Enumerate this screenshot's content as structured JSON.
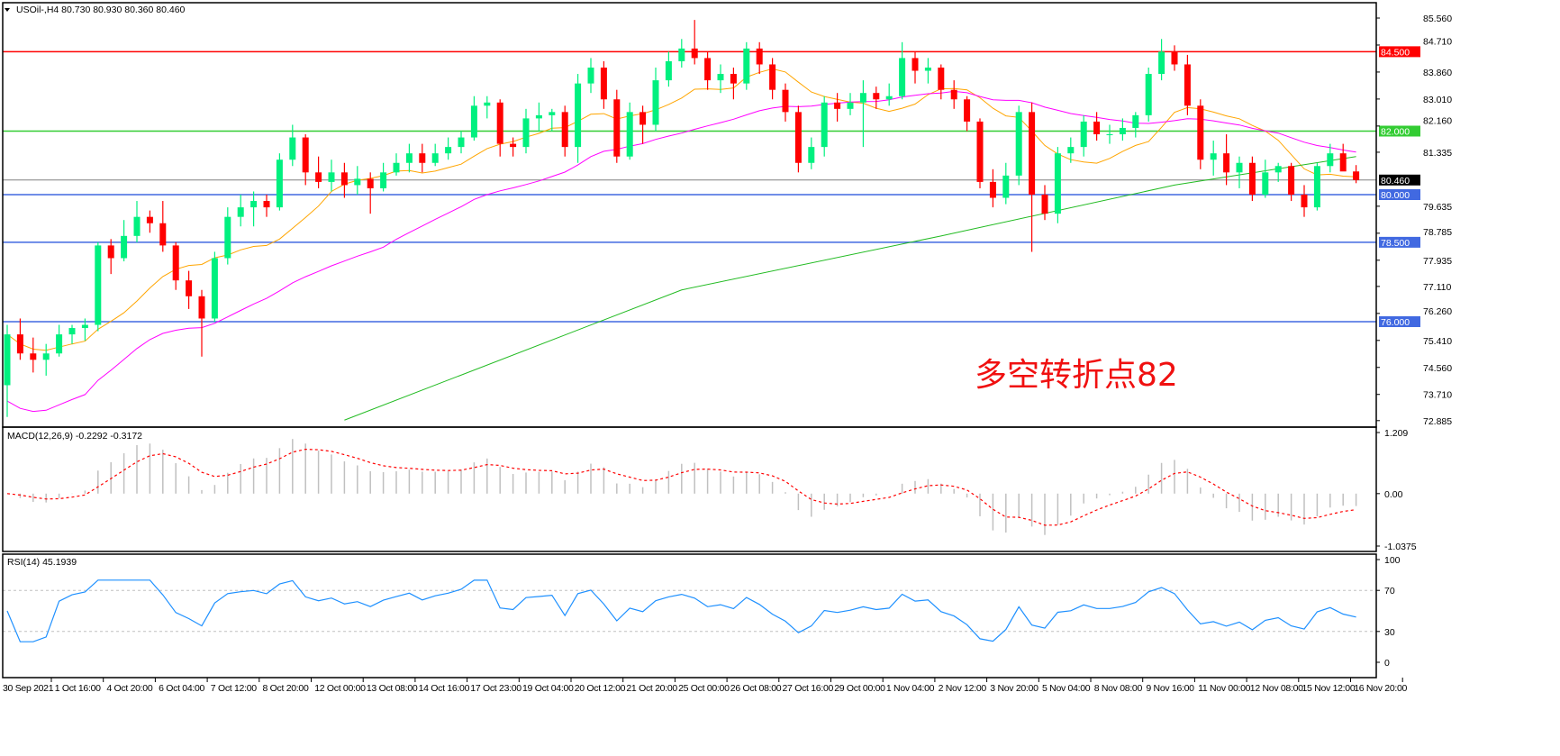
{
  "chart_data": {
    "type": "candlestick",
    "symbol_header": "USOil-,H4  80.730 80.930 80.360 80.460",
    "annotation": "多空转折点82",
    "colors": {
      "bull": "#00f07f",
      "bear": "#ff0000",
      "ma_fast": "#ffa500",
      "ma_mid": "#ff00ff",
      "ma_long": "#22bb22",
      "macd_hist": "#c0c0c0",
      "macd_signal": "#ff0000",
      "rsi": "#1e90ff"
    },
    "price_axis": {
      "min": 72.885,
      "max": 85.56,
      "ticks": [
        "85.560",
        "84.710",
        "83.860",
        "83.010",
        "82.160",
        "81.335",
        "79.635",
        "78.785",
        "77.935",
        "77.110",
        "76.260",
        "75.410",
        "74.560",
        "73.710",
        "72.885"
      ]
    },
    "current_price": {
      "value": 80.46,
      "label": "80.460",
      "color": "#808080"
    },
    "levels": [
      {
        "value": 84.5,
        "label": "84.500",
        "color": "#ff0000"
      },
      {
        "value": 82.0,
        "label": "82.000",
        "color": "#33cc33"
      },
      {
        "value": 80.0,
        "label": "80.000",
        "color": "#4169e1"
      },
      {
        "value": 78.5,
        "label": "78.500",
        "color": "#4169e1"
      },
      {
        "value": 76.0,
        "label": "76.000",
        "color": "#4169e1"
      }
    ],
    "time_labels": [
      "30 Sep 2021",
      "1 Oct 16:00",
      "4 Oct 20:00",
      "6 Oct 04:00",
      "7 Oct 12:00",
      "8 Oct 20:00",
      "12 Oct 00:00",
      "13 Oct 08:00",
      "14 Oct 16:00",
      "17 Oct 23:00",
      "19 Oct 04:00",
      "20 Oct 12:00",
      "21 Oct 20:00",
      "25 Oct 00:00",
      "26 Oct 08:00",
      "27 Oct 16:00",
      "29 Oct 00:00",
      "1 Nov 04:00",
      "2 Nov 12:00",
      "3 Nov 20:00",
      "5 Nov 04:00",
      "8 Nov 08:00",
      "9 Nov 16:00",
      "11 Nov 00:00",
      "12 Nov 08:00",
      "15 Nov 12:00",
      "16 Nov 20:00"
    ],
    "candles_ohlc": [
      [
        74.0,
        75.9,
        73.0,
        75.6
      ],
      [
        75.6,
        76.1,
        74.8,
        75.0
      ],
      [
        75.0,
        75.5,
        74.4,
        74.8
      ],
      [
        74.8,
        75.3,
        74.3,
        75.0
      ],
      [
        75.0,
        75.9,
        74.9,
        75.6
      ],
      [
        75.6,
        75.9,
        75.3,
        75.8
      ],
      [
        75.8,
        76.1,
        75.4,
        75.9
      ],
      [
        75.9,
        78.5,
        75.7,
        78.4
      ],
      [
        78.4,
        78.6,
        77.5,
        78.0
      ],
      [
        78.0,
        79.2,
        77.9,
        78.7
      ],
      [
        78.7,
        79.8,
        78.5,
        79.3
      ],
      [
        79.3,
        79.5,
        78.8,
        79.1
      ],
      [
        79.1,
        79.8,
        78.2,
        78.4
      ],
      [
        78.4,
        78.5,
        77.0,
        77.3
      ],
      [
        77.3,
        77.6,
        76.4,
        76.8
      ],
      [
        76.8,
        77.0,
        74.9,
        76.1
      ],
      [
        76.1,
        78.2,
        76.0,
        78.0
      ],
      [
        78.0,
        79.6,
        77.8,
        79.3
      ],
      [
        79.3,
        80.0,
        79.0,
        79.6
      ],
      [
        79.6,
        80.1,
        79.0,
        79.8
      ],
      [
        79.8,
        80.0,
        79.3,
        79.6
      ],
      [
        79.6,
        81.3,
        79.5,
        81.1
      ],
      [
        81.1,
        82.2,
        80.9,
        81.8
      ],
      [
        81.8,
        81.9,
        80.3,
        80.7
      ],
      [
        80.7,
        81.2,
        80.2,
        80.4
      ],
      [
        80.4,
        81.1,
        80.1,
        80.7
      ],
      [
        80.7,
        81.0,
        79.9,
        80.3
      ],
      [
        80.3,
        80.9,
        80.0,
        80.5
      ],
      [
        80.5,
        80.7,
        79.4,
        80.2
      ],
      [
        80.2,
        81.0,
        80.1,
        80.7
      ],
      [
        80.7,
        81.3,
        80.6,
        81.0
      ],
      [
        81.0,
        81.6,
        80.7,
        81.3
      ],
      [
        81.3,
        81.6,
        80.7,
        81.0
      ],
      [
        81.0,
        81.6,
        80.9,
        81.3
      ],
      [
        81.3,
        81.8,
        81.1,
        81.5
      ],
      [
        81.5,
        82.0,
        81.3,
        81.8
      ],
      [
        81.8,
        83.1,
        81.7,
        82.8
      ],
      [
        82.8,
        83.1,
        82.4,
        82.9
      ],
      [
        82.9,
        83.0,
        81.2,
        81.6
      ],
      [
        81.6,
        81.8,
        81.2,
        81.5
      ],
      [
        81.5,
        82.7,
        81.3,
        82.4
      ],
      [
        82.4,
        82.9,
        82.0,
        82.5
      ],
      [
        82.5,
        82.7,
        82.0,
        82.6
      ],
      [
        82.6,
        82.8,
        81.2,
        81.5
      ],
      [
        81.5,
        83.8,
        81.0,
        83.5
      ],
      [
        83.5,
        84.3,
        83.2,
        84.0
      ],
      [
        84.0,
        84.2,
        82.7,
        83.0
      ],
      [
        83.0,
        83.3,
        81.0,
        81.2
      ],
      [
        81.2,
        82.9,
        81.1,
        82.6
      ],
      [
        82.6,
        82.8,
        81.6,
        82.2
      ],
      [
        82.2,
        84.0,
        82.0,
        83.6
      ],
      [
        83.6,
        84.5,
        83.4,
        84.2
      ],
      [
        84.2,
        84.9,
        84.0,
        84.6
      ],
      [
        84.6,
        85.5,
        84.1,
        84.3
      ],
      [
        84.3,
        84.5,
        83.3,
        83.6
      ],
      [
        83.6,
        84.1,
        83.2,
        83.8
      ],
      [
        83.8,
        84.0,
        83.0,
        83.5
      ],
      [
        83.5,
        84.8,
        83.3,
        84.6
      ],
      [
        84.6,
        84.8,
        83.8,
        84.1
      ],
      [
        84.1,
        84.3,
        83.0,
        83.3
      ],
      [
        83.3,
        83.5,
        82.3,
        82.6
      ],
      [
        82.6,
        82.8,
        80.7,
        81.0
      ],
      [
        81.0,
        81.8,
        80.8,
        81.5
      ],
      [
        81.5,
        83.1,
        81.2,
        82.9
      ],
      [
        82.9,
        83.2,
        82.3,
        82.7
      ],
      [
        82.7,
        83.2,
        82.5,
        82.9
      ],
      [
        82.9,
        83.6,
        81.5,
        83.2
      ],
      [
        83.2,
        83.4,
        82.7,
        83.0
      ],
      [
        83.0,
        83.5,
        82.8,
        83.1
      ],
      [
        83.1,
        84.8,
        83.0,
        84.3
      ],
      [
        84.3,
        84.5,
        83.5,
        83.9
      ],
      [
        83.9,
        84.3,
        83.5,
        84.0
      ],
      [
        84.0,
        84.1,
        83.0,
        83.3
      ],
      [
        83.3,
        83.6,
        82.7,
        83.0
      ],
      [
        83.0,
        83.1,
        82.0,
        82.3
      ],
      [
        82.3,
        82.4,
        80.2,
        80.4
      ],
      [
        80.4,
        80.8,
        79.6,
        79.9
      ],
      [
        79.9,
        81.0,
        79.7,
        80.6
      ],
      [
        80.6,
        82.8,
        80.3,
        82.6
      ],
      [
        82.6,
        82.9,
        78.2,
        80.0
      ],
      [
        80.0,
        80.3,
        79.2,
        79.4
      ],
      [
        79.4,
        81.5,
        79.1,
        81.3
      ],
      [
        81.3,
        81.8,
        81.0,
        81.5
      ],
      [
        81.5,
        82.5,
        81.2,
        82.3
      ],
      [
        82.3,
        82.6,
        81.7,
        81.9
      ],
      [
        81.9,
        82.2,
        81.6,
        81.9
      ],
      [
        81.9,
        82.4,
        81.7,
        82.1
      ],
      [
        82.1,
        82.6,
        81.8,
        82.5
      ],
      [
        82.5,
        84.0,
        82.3,
        83.8
      ],
      [
        83.8,
        84.9,
        83.6,
        84.5
      ],
      [
        84.5,
        84.7,
        83.9,
        84.1
      ],
      [
        84.1,
        84.4,
        82.5,
        82.8
      ],
      [
        82.8,
        83.0,
        80.8,
        81.1
      ],
      [
        81.1,
        81.7,
        80.6,
        81.3
      ],
      [
        81.3,
        81.9,
        80.3,
        80.7
      ],
      [
        80.7,
        81.2,
        80.2,
        81.0
      ],
      [
        81.0,
        81.2,
        79.8,
        80.0
      ],
      [
        80.0,
        81.1,
        79.9,
        80.7
      ],
      [
        80.7,
        81.0,
        80.4,
        80.9
      ],
      [
        80.9,
        81.0,
        79.8,
        80.0
      ],
      [
        80.0,
        80.3,
        79.3,
        79.6
      ],
      [
        79.6,
        81.0,
        79.5,
        80.9
      ],
      [
        80.9,
        81.6,
        80.7,
        81.3
      ],
      [
        81.3,
        81.6,
        80.9,
        80.73
      ],
      [
        80.73,
        80.93,
        80.36,
        80.46
      ]
    ],
    "ma_long_points": [
      [
        26,
        72.9
      ],
      [
        52,
        77.0
      ],
      [
        72,
        78.7
      ],
      [
        90,
        80.3
      ],
      [
        104,
        81.2
      ]
    ],
    "macd": {
      "header": "MACD(12,26,9) -0.2292 -0.3172",
      "axis": {
        "max": 1.209,
        "min": -1.0375,
        "ticks": [
          "1.209",
          "0.00",
          "-1.0375"
        ]
      }
    },
    "rsi": {
      "header": "RSI(14) 45.1939",
      "axis": {
        "ticks": [
          "100",
          "70",
          "30",
          "0"
        ]
      },
      "levels": [
        70,
        30
      ]
    }
  }
}
